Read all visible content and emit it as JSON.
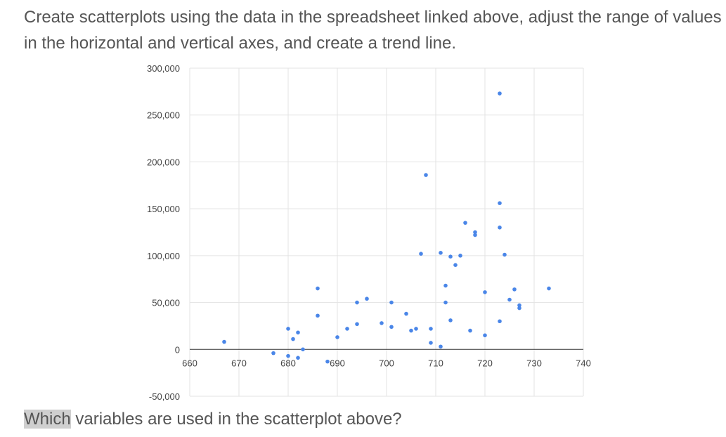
{
  "question": {
    "text": "Create scatterplots using the data in the spreadsheet linked above, adjust the range of values in the horizontal and vertical axes, and create a trend line."
  },
  "footer": {
    "highlight": "Which",
    "rest": " variables are used in the scatterplot above?"
  },
  "chart_data": {
    "type": "scatter",
    "grid": true,
    "xlim": [
      660,
      740
    ],
    "ylim": [
      -50000,
      300000
    ],
    "x_ticks": [
      660,
      670,
      680,
      690,
      700,
      710,
      720,
      730,
      740
    ],
    "x_tick_labels": [
      "660",
      "670",
      "680",
      "690",
      "700",
      "710",
      "720",
      "730",
      "740"
    ],
    "y_ticks": [
      -50000,
      0,
      50000,
      100000,
      150000,
      200000,
      250000,
      300000
    ],
    "y_tick_labels": [
      "-50,000",
      "0",
      "50,000",
      "100,000",
      "150,000",
      "200,000",
      "250,000",
      "300,000"
    ],
    "color": "#4a86e8",
    "points": [
      {
        "x": 667,
        "y": 8000
      },
      {
        "x": 677,
        "y": -4000
      },
      {
        "x": 680,
        "y": 22000
      },
      {
        "x": 680,
        "y": -7000
      },
      {
        "x": 681,
        "y": 11000
      },
      {
        "x": 682,
        "y": 18000
      },
      {
        "x": 682,
        "y": -9000
      },
      {
        "x": 683,
        "y": 0
      },
      {
        "x": 686,
        "y": 65000
      },
      {
        "x": 686,
        "y": 36000
      },
      {
        "x": 688,
        "y": -13000
      },
      {
        "x": 690,
        "y": 13000
      },
      {
        "x": 692,
        "y": 22000
      },
      {
        "x": 694,
        "y": 50000
      },
      {
        "x": 694,
        "y": 27000
      },
      {
        "x": 696,
        "y": 54000
      },
      {
        "x": 699,
        "y": 28000
      },
      {
        "x": 701,
        "y": 50000
      },
      {
        "x": 701,
        "y": 24000
      },
      {
        "x": 704,
        "y": 38000
      },
      {
        "x": 705,
        "y": 20000
      },
      {
        "x": 706,
        "y": 22000
      },
      {
        "x": 707,
        "y": 102000
      },
      {
        "x": 708,
        "y": 186000
      },
      {
        "x": 709,
        "y": 22000
      },
      {
        "x": 709,
        "y": 7000
      },
      {
        "x": 711,
        "y": 103000
      },
      {
        "x": 711,
        "y": 3000
      },
      {
        "x": 712,
        "y": 68000
      },
      {
        "x": 712,
        "y": 50000
      },
      {
        "x": 713,
        "y": 99000
      },
      {
        "x": 713,
        "y": 31000
      },
      {
        "x": 714,
        "y": 90000
      },
      {
        "x": 715,
        "y": 100000
      },
      {
        "x": 716,
        "y": 135000
      },
      {
        "x": 717,
        "y": 20000
      },
      {
        "x": 718,
        "y": 125000
      },
      {
        "x": 718,
        "y": 122000
      },
      {
        "x": 720,
        "y": 61000
      },
      {
        "x": 720,
        "y": 15000
      },
      {
        "x": 723,
        "y": 273000
      },
      {
        "x": 723,
        "y": 156000
      },
      {
        "x": 723,
        "y": 130000
      },
      {
        "x": 723,
        "y": 30000
      },
      {
        "x": 724,
        "y": 101000
      },
      {
        "x": 725,
        "y": 53000
      },
      {
        "x": 726,
        "y": 64000
      },
      {
        "x": 727,
        "y": 47000
      },
      {
        "x": 727,
        "y": 44000
      },
      {
        "x": 733,
        "y": 65000
      }
    ]
  }
}
